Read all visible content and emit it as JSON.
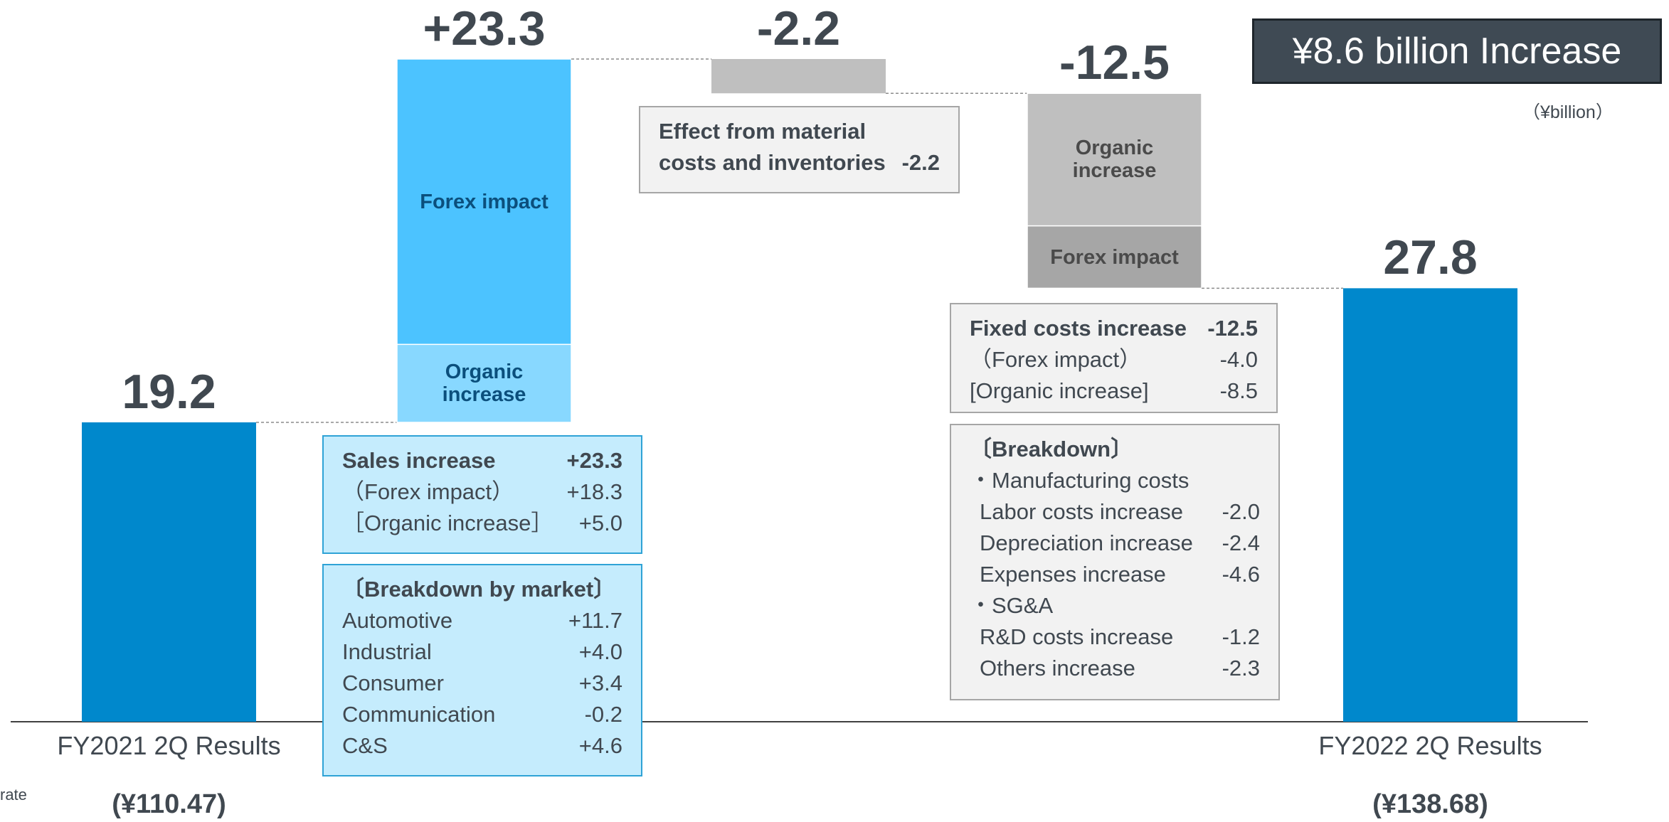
{
  "chart_data": {
    "type": "waterfall",
    "title": "¥8.6 billion Increase",
    "unit": "（¥billion）",
    "edge_note": "rate",
    "categories": [
      "FY2021 2Q Results",
      null,
      null,
      null,
      "FY2022 2Q Results"
    ],
    "category_notes": [
      "(¥110.47)",
      null,
      null,
      null,
      "(¥138.68)"
    ],
    "values": [
      19.2,
      23.3,
      -2.2,
      -12.5,
      27.8
    ],
    "value_labels": [
      "19.2",
      "+23.3",
      "-2.2",
      "-12.5",
      "27.8"
    ],
    "colors": [
      "#0088cc",
      "#4cc3ff",
      "#bfbfbf",
      "#bfbfbf",
      "#0088cc"
    ],
    "segments": [
      null,
      [
        {
          "name": "Organic increase",
          "value": 5.0,
          "color": "#88d8ff",
          "text_color": "#0b4f7c"
        },
        {
          "name": "Forex impact",
          "value": 18.3,
          "color": "#4cc3ff",
          "text_color": "#0b4f7c"
        }
      ],
      null,
      [
        {
          "name": "Organic increase",
          "value": -8.5,
          "color": "#bfbfbf",
          "text_color": "#4a4a4a"
        },
        {
          "name": "Forex impact",
          "value": -4.0,
          "color": "#a6a6a6",
          "text_color": "#4a4a4a"
        }
      ],
      null
    ],
    "boxes": [
      {
        "style": "blue",
        "lines": [
          {
            "label": "Sales increase",
            "value": "+23.3",
            "bold": true
          },
          {
            "label": "（Forex impact）",
            "value": "+18.3"
          },
          {
            "label": "［Organic increase］",
            "value": "+5.0"
          }
        ]
      },
      {
        "style": "blue",
        "lines": [
          {
            "label": "〔Breakdown by market〕",
            "bold": true
          },
          {
            "label": "Automotive",
            "value": "+11.7"
          },
          {
            "label": "Industrial",
            "value": "+4.0"
          },
          {
            "label": "Consumer",
            "value": "+3.4"
          },
          {
            "label": "Communication",
            "value": "-0.2"
          },
          {
            "label": "C&S",
            "value": "+4.6"
          }
        ]
      },
      {
        "style": "gray",
        "lines": [
          {
            "label": "Effect from material",
            "bold": true
          },
          {
            "label": "costs and inventories",
            "value": "-2.2",
            "bold": true
          }
        ]
      },
      {
        "style": "gray",
        "lines": [
          {
            "label": "Fixed costs increase",
            "value": "-12.5",
            "bold": true
          },
          {
            "label": "（Forex impact）",
            "value": "-4.0"
          },
          {
            "label": "[Organic increase]",
            "value": "-8.5"
          }
        ]
      },
      {
        "style": "gray",
        "lines": [
          {
            "label": "〔Breakdown〕",
            "bold": true
          },
          {
            "label": "・Manufacturing costs"
          },
          {
            "label": "Labor costs increase",
            "value": "-2.0",
            "indent": true
          },
          {
            "label": "Depreciation increase",
            "value": "-2.4",
            "indent": true
          },
          {
            "label": "Expenses increase",
            "value": "-4.6",
            "indent": true
          },
          {
            "label": "・SG&A"
          },
          {
            "label": "R&D costs increase",
            "value": "-1.2",
            "indent": true
          },
          {
            "label": "Others increase",
            "value": "-2.3",
            "indent": true
          }
        ]
      }
    ]
  }
}
